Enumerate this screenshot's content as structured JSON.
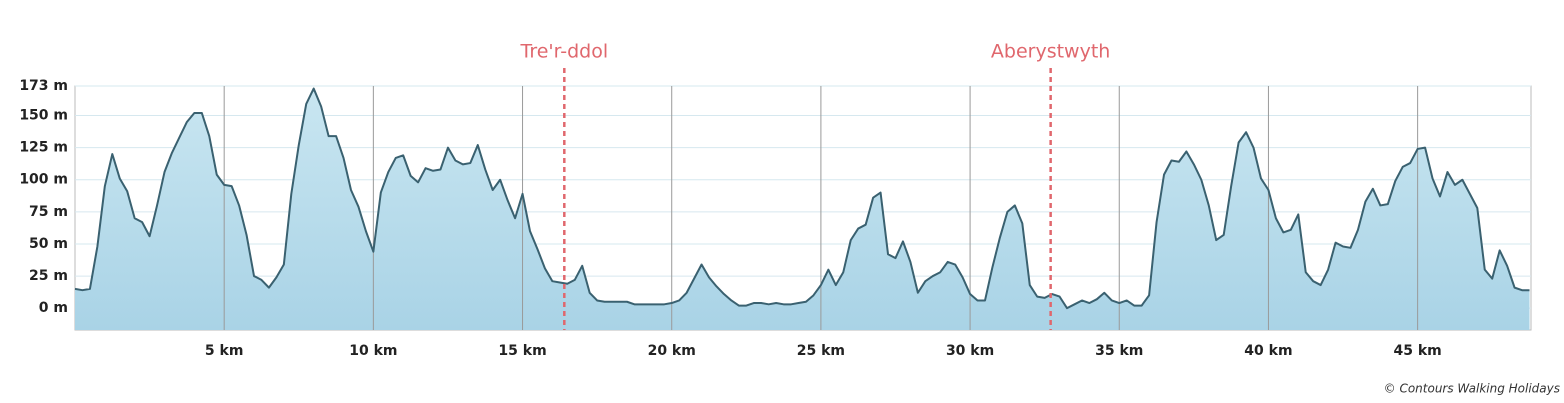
{
  "chart_data": {
    "type": "area",
    "line_color": "#3a6170",
    "fill_top": "#c9e6f1",
    "fill_bottom": "#a9d3e6",
    "marker_color": "#e0676d",
    "grid": true,
    "xlim": [
      0,
      48.8
    ],
    "ylim": [
      -17,
      173
    ],
    "xticks": [
      {
        "value": 5,
        "label": "5 km"
      },
      {
        "value": 10,
        "label": "10 km"
      },
      {
        "value": 15,
        "label": "15 km"
      },
      {
        "value": 20,
        "label": "20 km"
      },
      {
        "value": 25,
        "label": "25 km"
      },
      {
        "value": 30,
        "label": "30 km"
      },
      {
        "value": 35,
        "label": "35 km"
      },
      {
        "value": 40,
        "label": "40 km"
      },
      {
        "value": 45,
        "label": "45 km"
      }
    ],
    "yticks": [
      {
        "value": 0,
        "label": "0 m"
      },
      {
        "value": 25,
        "label": "25 m"
      },
      {
        "value": 50,
        "label": "50 m"
      },
      {
        "value": 75,
        "label": "75 m"
      },
      {
        "value": 100,
        "label": "100 m"
      },
      {
        "value": 125,
        "label": "125 m"
      },
      {
        "value": 150,
        "label": "150 m"
      },
      {
        "value": 173,
        "label": "173 m"
      }
    ],
    "markers": [
      {
        "label": "Tre'r-ddol",
        "x": 16.4
      },
      {
        "label": "Aberystwyth",
        "x": 32.7
      }
    ],
    "credit": "© Contours Walking Holidays",
    "x": [
      0,
      0.25,
      0.5,
      0.75,
      1,
      1.25,
      1.5,
      1.75,
      2,
      2.25,
      2.5,
      2.75,
      3,
      3.25,
      3.5,
      3.75,
      4,
      4.25,
      4.5,
      4.75,
      5,
      5.25,
      5.5,
      5.75,
      6,
      6.25,
      6.5,
      6.75,
      7,
      7.25,
      7.5,
      7.75,
      8,
      8.25,
      8.5,
      8.75,
      9,
      9.25,
      9.5,
      9.75,
      10,
      10.25,
      10.5,
      10.75,
      11,
      11.25,
      11.5,
      11.75,
      12,
      12.25,
      12.5,
      12.75,
      13,
      13.25,
      13.5,
      13.75,
      14,
      14.25,
      14.5,
      14.75,
      15,
      15.25,
      15.5,
      15.75,
      16,
      16.25,
      16.5,
      16.75,
      17,
      17.25,
      17.5,
      17.75,
      18,
      18.25,
      18.5,
      18.75,
      19,
      19.25,
      19.5,
      19.75,
      20,
      20.25,
      20.5,
      20.75,
      21,
      21.25,
      21.5,
      21.75,
      22,
      22.25,
      22.5,
      22.75,
      23,
      23.25,
      23.5,
      23.75,
      24,
      24.25,
      24.5,
      24.75,
      25,
      25.25,
      25.5,
      25.75,
      26,
      26.25,
      26.5,
      26.75,
      27,
      27.25,
      27.5,
      27.75,
      28,
      28.25,
      28.5,
      28.75,
      29,
      29.25,
      29.5,
      29.75,
      30,
      30.25,
      30.5,
      30.75,
      31,
      31.25,
      31.5,
      31.75,
      32,
      32.25,
      32.5,
      32.75,
      33,
      33.25,
      33.5,
      33.75,
      34,
      34.25,
      34.5,
      34.75,
      35,
      35.25,
      35.5,
      35.75,
      36,
      36.25,
      36.5,
      36.75,
      37,
      37.25,
      37.5,
      37.75,
      38,
      38.25,
      38.5,
      38.75,
      39,
      39.25,
      39.5,
      39.75,
      40,
      40.25,
      40.5,
      40.75,
      41,
      41.25,
      41.5,
      41.75,
      42,
      42.25,
      42.5,
      42.75,
      43,
      43.25,
      43.5,
      43.75,
      44,
      44.25,
      44.5,
      44.75,
      45,
      45.25,
      45.5,
      45.75,
      46,
      46.25,
      46.5,
      46.75,
      47,
      47.25,
      47.5,
      47.75,
      48,
      48.25,
      48.5,
      48.75
    ],
    "values": [
      15,
      14,
      15,
      48,
      95,
      120,
      101,
      91,
      70,
      67,
      56,
      80,
      106,
      121,
      133,
      145,
      152,
      152,
      134,
      104,
      96,
      95,
      80,
      57,
      25,
      22,
      16,
      24,
      34,
      89,
      127,
      159,
      171,
      157,
      134,
      134,
      117,
      92,
      79,
      60,
      44,
      90,
      106,
      117,
      119,
      103,
      98,
      109,
      107,
      108,
      125,
      115,
      112,
      113,
      127,
      108,
      92,
      100,
      84,
      70,
      89,
      60,
      46,
      31,
      21,
      20,
      19,
      22,
      33,
      12,
      6,
      5,
      5,
      5,
      5,
      3,
      3,
      3,
      3,
      3,
      4,
      6,
      12,
      23,
      34,
      24,
      17,
      11,
      6,
      2,
      2,
      4,
      4,
      3,
      4,
      3,
      3,
      4,
      5,
      10,
      18,
      30,
      18,
      28,
      53,
      62,
      65,
      86,
      90,
      42,
      39,
      52,
      36,
      12,
      21,
      25,
      28,
      36,
      34,
      24,
      11,
      6,
      6,
      32,
      55,
      75,
      80,
      66,
      18,
      9,
      8,
      11,
      9,
      0,
      3,
      6,
      4,
      7,
      12,
      6,
      4,
      6,
      2,
      2,
      10,
      67,
      104,
      115,
      114,
      122,
      112,
      100,
      80,
      53,
      57,
      95,
      129,
      137,
      125,
      101,
      92,
      70,
      59,
      61,
      73,
      28,
      21,
      18,
      30,
      51,
      48,
      47,
      61,
      83,
      93,
      80,
      81,
      99,
      110,
      113,
      124,
      125,
      101,
      87,
      106,
      96,
      100,
      89,
      78,
      30,
      23,
      45,
      33,
      16,
      14,
      14
    ]
  }
}
